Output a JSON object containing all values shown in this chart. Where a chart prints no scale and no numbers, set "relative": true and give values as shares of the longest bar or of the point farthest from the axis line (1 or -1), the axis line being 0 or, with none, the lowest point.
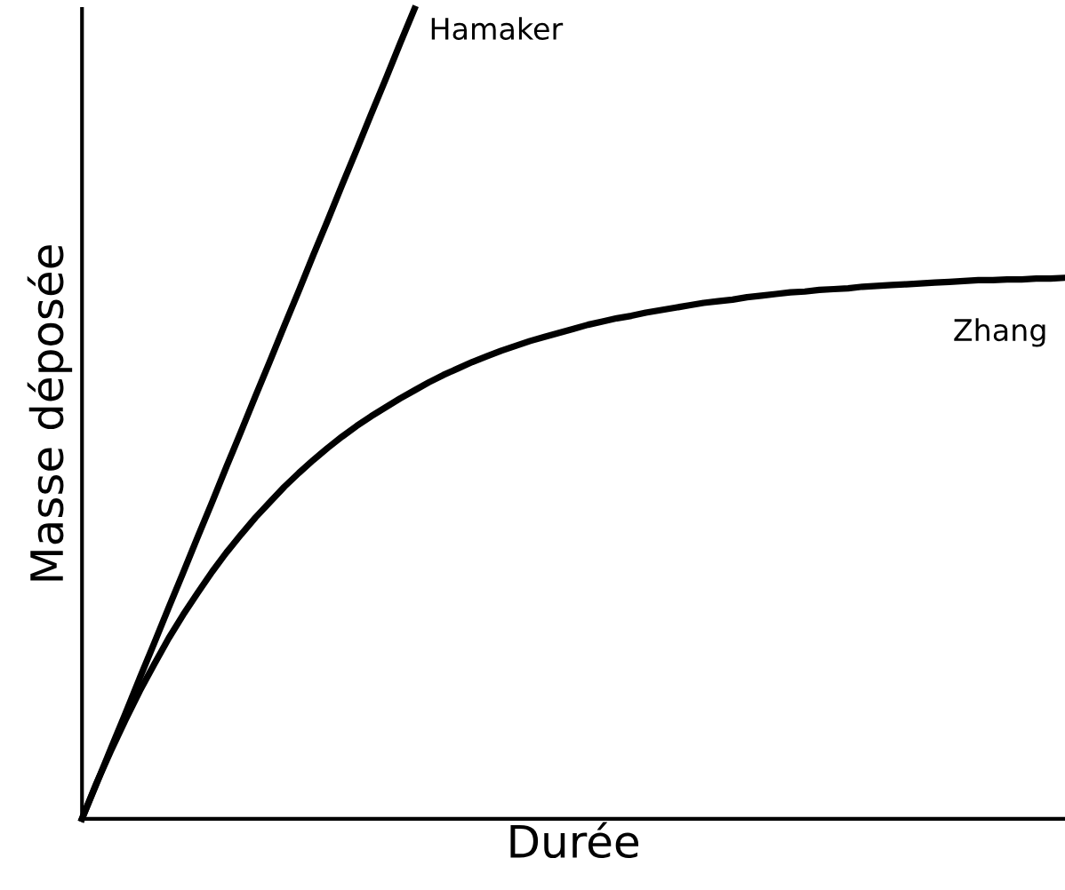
{
  "chart_data": {
    "type": "line",
    "relative": true,
    "xlabel": "Durée",
    "ylabel": "Masse déposée",
    "legend": false,
    "marker": "none",
    "line_style": "solid",
    "categories": [
      null,
      null,
      null,
      null,
      null,
      null,
      null,
      null,
      null,
      null,
      null,
      null,
      null,
      null,
      null,
      null,
      null,
      null,
      null,
      null,
      null,
      null,
      null,
      null,
      null,
      null,
      null,
      null,
      null,
      null,
      null,
      null,
      null,
      null,
      null,
      null,
      null,
      null,
      null,
      null,
      null,
      null,
      null,
      null,
      null,
      null,
      null,
      null,
      null,
      null,
      null,
      null,
      null,
      null,
      null,
      null,
      null,
      null,
      null,
      null,
      null,
      null,
      null,
      null,
      null,
      null,
      null,
      null,
      null
    ],
    "series": [
      {
        "name": "Hamaker",
        "color": "#000000",
        "values": [
          0,
          0.043,
          0.087,
          0.13,
          0.174,
          0.217,
          0.261,
          0.304,
          0.348,
          0.391,
          0.435,
          0.478,
          0.522,
          0.565,
          0.609,
          0.652,
          0.696,
          0.739,
          0.783,
          0.826,
          0.87,
          0.913,
          0.957,
          1,
          null,
          null,
          null,
          null,
          null,
          null,
          null,
          null,
          null,
          null,
          null,
          null,
          null,
          null,
          null,
          null,
          null,
          null,
          null,
          null,
          null,
          null,
          null,
          null,
          null,
          null,
          null,
          null,
          null,
          null,
          null,
          null,
          null,
          null,
          null,
          null,
          null,
          null,
          null,
          null,
          null,
          null,
          null,
          null,
          null
        ]
      },
      {
        "name": "Zhang",
        "color": "#000000",
        "values": [
          0,
          0.044,
          0.084,
          0.122,
          0.158,
          0.191,
          0.223,
          0.252,
          0.279,
          0.305,
          0.329,
          0.351,
          0.372,
          0.391,
          0.41,
          0.427,
          0.443,
          0.458,
          0.472,
          0.485,
          0.497,
          0.508,
          0.519,
          0.529,
          0.539,
          0.548,
          0.556,
          0.564,
          0.571,
          0.578,
          0.584,
          0.59,
          0.595,
          0.6,
          0.605,
          0.61,
          0.614,
          0.618,
          0.621,
          0.625,
          0.628,
          0.631,
          0.634,
          0.637,
          0.639,
          0.641,
          0.644,
          0.646,
          0.648,
          0.65,
          0.651,
          0.653,
          0.654,
          0.655,
          0.657,
          0.658,
          0.659,
          0.66,
          0.661,
          0.662,
          0.663,
          0.664,
          0.665,
          0.665,
          0.666,
          0.666,
          0.667,
          0.667,
          0.668
        ]
      }
    ]
  }
}
